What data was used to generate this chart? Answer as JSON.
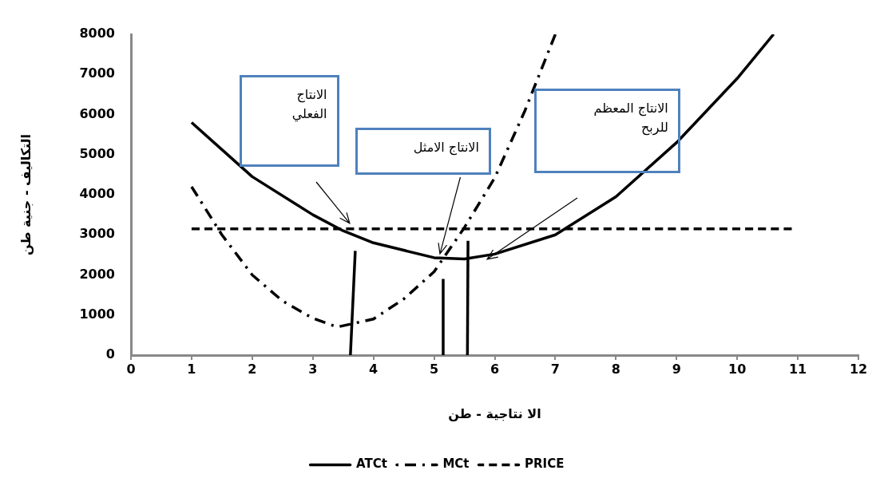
{
  "chart_data": {
    "type": "line",
    "xlabel": "الا نتاجية - طن",
    "ylabel": "التكاليف - جنية طن",
    "xlim": [
      0,
      12
    ],
    "xticks": [
      0,
      1,
      2,
      3,
      4,
      5,
      6,
      7,
      8,
      9,
      10,
      11,
      12
    ],
    "ylim": [
      0,
      8000
    ],
    "yticks": [
      0,
      1000,
      2000,
      3000,
      4000,
      5000,
      6000,
      7000,
      8000
    ],
    "grid": false,
    "legend": "bottom",
    "marker": "none",
    "series": [
      {
        "name": "ATCt",
        "color": "#000000",
        "line_style": "solid",
        "x": [
          1,
          2,
          3,
          3.5,
          4,
          5,
          5.5,
          6,
          7,
          8,
          9,
          10,
          10.6
        ],
        "values": [
          5800,
          4450,
          3500,
          3100,
          2800,
          2430,
          2400,
          2520,
          3000,
          3950,
          5300,
          6900,
          8000
        ]
      },
      {
        "name": "MCt",
        "color": "#000000",
        "line_style": "dashdot",
        "x": [
          1,
          1.5,
          2,
          2.5,
          3,
          3.4,
          4,
          4.5,
          5,
          5.5,
          6,
          6.5,
          7
        ],
        "values": [
          4200,
          3000,
          2000,
          1350,
          920,
          700,
          900,
          1400,
          2080,
          3180,
          4420,
          6100,
          8000
        ]
      },
      {
        "name": "PRICE",
        "color": "#000000",
        "line_style": "dashed",
        "x": [
          1,
          10.9
        ],
        "values": [
          3150,
          3150
        ],
        "type": "line"
      },
      {
        "color": "#000000",
        "line_style": "solid",
        "x": [
          3.62,
          3.7
        ],
        "values": [
          0,
          2600
        ]
      },
      {
        "color": "#000000",
        "line_style": "solid",
        "x": [
          5.15,
          5.15
        ],
        "values": [
          0,
          1900
        ]
      },
      {
        "color": "#000000",
        "line_style": "solid",
        "x": [
          5.55,
          5.56
        ],
        "values": [
          0,
          2850
        ]
      }
    ],
    "annotations": [
      "الانتاج الفعلي",
      "الانتاج الامثل",
      "الانتاج المعظم للربح"
    ]
  }
}
